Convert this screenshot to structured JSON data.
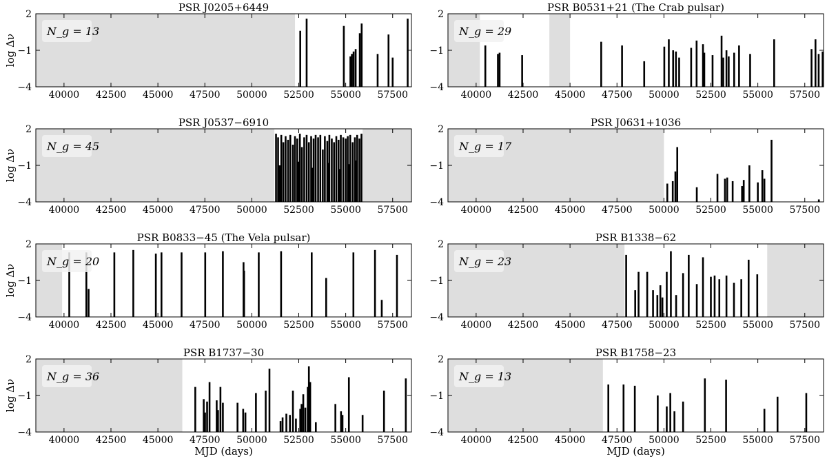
{
  "chart_data": [
    {
      "type": "bar",
      "title": "PSR J0205+6449",
      "badge": "N_g = 13",
      "ylabel": "log Δν",
      "xlabel": "",
      "xlim": [
        38500,
        58500
      ],
      "ylim": [
        -4,
        2
      ],
      "grey_regions": [
        [
          38500,
          52300
        ]
      ],
      "glitches": [
        {
          "x": 52580,
          "y": 0.6
        },
        {
          "x": 52920,
          "y": 1.6
        },
        {
          "x": 54900,
          "y": 1.0
        },
        {
          "x": 55250,
          "y": -1.5
        },
        {
          "x": 55330,
          "y": -1.3
        },
        {
          "x": 55420,
          "y": -1.1
        },
        {
          "x": 55530,
          "y": -0.9
        },
        {
          "x": 55750,
          "y": 0.4
        },
        {
          "x": 55850,
          "y": 1.2
        },
        {
          "x": 56700,
          "y": -1.3
        },
        {
          "x": 57280,
          "y": 0.3
        },
        {
          "x": 57500,
          "y": -1.6
        },
        {
          "x": 58300,
          "y": 1.6
        }
      ]
    },
    {
      "type": "bar",
      "title": "PSR B0531+21 (The Crab pulsar)",
      "badge": "N_g = 29",
      "ylabel": "",
      "xlabel": "",
      "xlim": [
        38500,
        58500
      ],
      "ylim": [
        -4,
        2
      ],
      "grey_regions": [
        [
          38500,
          40200
        ],
        [
          43900,
          45000
        ]
      ],
      "glitches": [
        {
          "x": 40490,
          "y": -0.6
        },
        {
          "x": 41160,
          "y": -1.3
        },
        {
          "x": 41250,
          "y": -1.2
        },
        {
          "x": 42450,
          "y": -1.4
        },
        {
          "x": 46660,
          "y": -0.3
        },
        {
          "x": 47770,
          "y": -0.6
        },
        {
          "x": 48950,
          "y": -1.9
        },
        {
          "x": 50020,
          "y": -0.7
        },
        {
          "x": 50260,
          "y": -0.1
        },
        {
          "x": 50490,
          "y": -1.0
        },
        {
          "x": 50810,
          "y": -1.6
        },
        {
          "x": 51450,
          "y": -0.8
        },
        {
          "x": 51740,
          "y": -0.2
        },
        {
          "x": 52080,
          "y": -0.5
        },
        {
          "x": 52150,
          "y": -1.2
        },
        {
          "x": 52590,
          "y": -1.4
        },
        {
          "x": 53070,
          "y": 0.2
        },
        {
          "x": 53330,
          "y": -1.0
        },
        {
          "x": 53740,
          "y": -1.2
        },
        {
          "x": 54000,
          "y": -0.6
        },
        {
          "x": 54590,
          "y": -1.3
        },
        {
          "x": 55870,
          "y": -0.1
        },
        {
          "x": 57860,
          "y": -0.9
        },
        {
          "x": 58070,
          "y": -0.1
        },
        {
          "x": 58240,
          "y": -1.3
        },
        {
          "x": 58450,
          "y": -1.1
        },
        {
          "x": 53450,
          "y": -1.5
        },
        {
          "x": 50640,
          "y": -1.1
        },
        {
          "x": 53160,
          "y": -1.6
        }
      ]
    },
    {
      "type": "bar",
      "title": "PSR J0537−6910",
      "badge": "N_g = 45",
      "ylabel": "log Δν",
      "xlabel": "",
      "xlim": [
        38500,
        58500
      ],
      "ylim": [
        -4,
        2
      ],
      "grey_regions": [
        [
          38500,
          51200
        ],
        [
          55900,
          58500
        ]
      ],
      "glitches": [
        {
          "x": 51290,
          "y": 1.6
        },
        {
          "x": 51400,
          "y": 1.3
        },
        {
          "x": 51570,
          "y": 1.5
        },
        {
          "x": 51680,
          "y": 0.9
        },
        {
          "x": 51800,
          "y": 1.4
        },
        {
          "x": 51930,
          "y": 1.1
        },
        {
          "x": 52050,
          "y": 1.5
        },
        {
          "x": 52190,
          "y": 0.7
        },
        {
          "x": 52300,
          "y": 1.4
        },
        {
          "x": 52420,
          "y": 1.2
        },
        {
          "x": 52560,
          "y": 1.6
        },
        {
          "x": 52670,
          "y": 0.5
        },
        {
          "x": 52790,
          "y": 1.3
        },
        {
          "x": 52920,
          "y": 1.5
        },
        {
          "x": 53040,
          "y": 0.9
        },
        {
          "x": 53160,
          "y": 1.4
        },
        {
          "x": 53290,
          "y": 1.2
        },
        {
          "x": 53400,
          "y": 1.5
        },
        {
          "x": 53530,
          "y": 1.3
        },
        {
          "x": 53650,
          "y": 1.5
        },
        {
          "x": 53780,
          "y": 0.3
        },
        {
          "x": 53890,
          "y": 1.4
        },
        {
          "x": 54020,
          "y": 1.0
        },
        {
          "x": 54130,
          "y": 1.5
        },
        {
          "x": 54260,
          "y": 1.2
        },
        {
          "x": 54380,
          "y": 0.9
        },
        {
          "x": 54500,
          "y": 1.4
        },
        {
          "x": 54620,
          "y": 1.1
        },
        {
          "x": 54740,
          "y": 1.5
        },
        {
          "x": 54870,
          "y": 1.3
        },
        {
          "x": 55000,
          "y": 1.2
        },
        {
          "x": 55110,
          "y": 1.4
        },
        {
          "x": 55240,
          "y": 1.5
        },
        {
          "x": 55370,
          "y": 0.9
        },
        {
          "x": 55490,
          "y": 1.3
        },
        {
          "x": 55610,
          "y": 1.5
        },
        {
          "x": 55730,
          "y": 1.2
        },
        {
          "x": 55840,
          "y": 1.6
        },
        {
          "x": 51480,
          "y": -1.0
        },
        {
          "x": 52480,
          "y": -0.7
        },
        {
          "x": 53210,
          "y": -1.2
        },
        {
          "x": 54070,
          "y": -0.8
        },
        {
          "x": 54680,
          "y": -1.3
        },
        {
          "x": 55180,
          "y": -0.9
        },
        {
          "x": 55560,
          "y": -0.6
        }
      ]
    },
    {
      "type": "bar",
      "title": "PSR J0631+1036",
      "badge": "N_g = 17",
      "ylabel": "",
      "xlabel": "",
      "xlim": [
        38500,
        58500
      ],
      "ylim": [
        -4,
        2
      ],
      "grey_regions": [
        [
          38500,
          50000
        ]
      ],
      "glitches": [
        {
          "x": 50180,
          "y": -2.5
        },
        {
          "x": 50470,
          "y": -2.3
        },
        {
          "x": 50610,
          "y": -1.5
        },
        {
          "x": 50710,
          "y": 0.5
        },
        {
          "x": 51750,
          "y": -2.8
        },
        {
          "x": 52850,
          "y": -1.7
        },
        {
          "x": 53250,
          "y": -2.1
        },
        {
          "x": 53370,
          "y": -2.0
        },
        {
          "x": 53660,
          "y": -2.3
        },
        {
          "x": 54160,
          "y": -2.7
        },
        {
          "x": 54250,
          "y": -2.2
        },
        {
          "x": 54550,
          "y": -1.0
        },
        {
          "x": 55000,
          "y": -2.4
        },
        {
          "x": 55240,
          "y": -1.4
        },
        {
          "x": 55350,
          "y": -2.1
        },
        {
          "x": 55730,
          "y": 1.1
        },
        {
          "x": 58250,
          "y": -3.8
        }
      ]
    },
    {
      "type": "bar",
      "title": "PSR B0833−45 (The Vela pulsar)",
      "badge": "N_g = 20",
      "ylabel": "log Δν",
      "xlabel": "",
      "xlim": [
        38500,
        58500
      ],
      "ylim": [
        -4,
        2
      ],
      "grey_regions": [
        [
          38500,
          39900
        ]
      ],
      "glitches": [
        {
          "x": 40280,
          "y": 1.3
        },
        {
          "x": 41190,
          "y": 1.3
        },
        {
          "x": 41310,
          "y": -1.7
        },
        {
          "x": 42680,
          "y": 1.3
        },
        {
          "x": 43690,
          "y": 1.5
        },
        {
          "x": 44890,
          "y": 1.2
        },
        {
          "x": 45190,
          "y": 1.3
        },
        {
          "x": 46260,
          "y": 1.3
        },
        {
          "x": 47520,
          "y": 1.3
        },
        {
          "x": 48460,
          "y": 1.4
        },
        {
          "x": 49560,
          "y": 0.5
        },
        {
          "x": 49590,
          "y": -0.2
        },
        {
          "x": 50370,
          "y": 1.3
        },
        {
          "x": 51560,
          "y": 1.4
        },
        {
          "x": 53190,
          "y": 1.3
        },
        {
          "x": 53960,
          "y": -0.8
        },
        {
          "x": 55410,
          "y": 1.3
        },
        {
          "x": 56560,
          "y": 1.5
        },
        {
          "x": 56920,
          "y": -2.6
        },
        {
          "x": 57730,
          "y": 1.1
        }
      ]
    },
    {
      "type": "bar",
      "title": "PSR B1338−62",
      "badge": "N_g = 23",
      "ylabel": "",
      "xlabel": "",
      "xlim": [
        38500,
        58500
      ],
      "ylim": [
        -4,
        2
      ],
      "grey_regions": [
        [
          38500,
          47900
        ],
        [
          55500,
          58500
        ]
      ],
      "glitches": [
        {
          "x": 47990,
          "y": 1.1
        },
        {
          "x": 48470,
          "y": -1.8
        },
        {
          "x": 48650,
          "y": -0.3
        },
        {
          "x": 49110,
          "y": -0.3
        },
        {
          "x": 49420,
          "y": -1.8
        },
        {
          "x": 49650,
          "y": -2.2
        },
        {
          "x": 49810,
          "y": -1.4
        },
        {
          "x": 49920,
          "y": -2.4
        },
        {
          "x": 50150,
          "y": -0.3
        },
        {
          "x": 50370,
          "y": 1.4
        },
        {
          "x": 50650,
          "y": -2.2
        },
        {
          "x": 51020,
          "y": -0.4
        },
        {
          "x": 51320,
          "y": 1.1
        },
        {
          "x": 51750,
          "y": -1.3
        },
        {
          "x": 52080,
          "y": 0.9
        },
        {
          "x": 52500,
          "y": -0.7
        },
        {
          "x": 52700,
          "y": -0.6
        },
        {
          "x": 52950,
          "y": -0.9
        },
        {
          "x": 53330,
          "y": -0.6
        },
        {
          "x": 53730,
          "y": -1.2
        },
        {
          "x": 54120,
          "y": -0.9
        },
        {
          "x": 54510,
          "y": 0.7
        },
        {
          "x": 54970,
          "y": -0.5
        }
      ]
    },
    {
      "type": "bar",
      "title": "PSR B1737−30",
      "badge": "N_g = 36",
      "ylabel": "log Δν",
      "xlabel": "MJD (days)",
      "xlim": [
        38500,
        58500
      ],
      "ylim": [
        -4,
        2
      ],
      "grey_regions": [
        [
          38500,
          46300
        ]
      ],
      "glitches": [
        {
          "x": 46990,
          "y": -0.3
        },
        {
          "x": 47440,
          "y": -1.3
        },
        {
          "x": 47510,
          "y": -2.4
        },
        {
          "x": 47620,
          "y": -1.5
        },
        {
          "x": 47750,
          "y": 0.1
        },
        {
          "x": 48130,
          "y": -1.4
        },
        {
          "x": 48200,
          "y": -2.2
        },
        {
          "x": 48330,
          "y": -0.3
        },
        {
          "x": 48460,
          "y": -1.6
        },
        {
          "x": 49240,
          "y": -1.6
        },
        {
          "x": 49540,
          "y": -2.1
        },
        {
          "x": 49660,
          "y": -2.4
        },
        {
          "x": 50220,
          "y": -0.8
        },
        {
          "x": 50740,
          "y": -0.6
        },
        {
          "x": 50940,
          "y": 1.2
        },
        {
          "x": 51530,
          "y": -3.1
        },
        {
          "x": 51640,
          "y": -2.8
        },
        {
          "x": 51840,
          "y": -2.5
        },
        {
          "x": 52030,
          "y": -2.6
        },
        {
          "x": 52190,
          "y": -0.6
        },
        {
          "x": 52350,
          "y": -2.9
        },
        {
          "x": 52580,
          "y": -2.1
        },
        {
          "x": 52650,
          "y": -1.7
        },
        {
          "x": 52740,
          "y": -0.9
        },
        {
          "x": 52850,
          "y": -2.0
        },
        {
          "x": 52980,
          "y": -0.3
        },
        {
          "x": 53040,
          "y": 1.4
        },
        {
          "x": 53110,
          "y": 0.1
        },
        {
          "x": 53410,
          "y": -3.2
        },
        {
          "x": 54450,
          "y": -1.7
        },
        {
          "x": 54750,
          "y": -2.3
        },
        {
          "x": 54830,
          "y": -2.6
        },
        {
          "x": 55170,
          "y": 0.5
        },
        {
          "x": 55900,
          "y": -2.6
        },
        {
          "x": 57040,
          "y": -0.6
        },
        {
          "x": 58200,
          "y": 0.4
        }
      ]
    },
    {
      "type": "bar",
      "title": "PSR B1758−23",
      "badge": "N_g = 13",
      "ylabel": "",
      "xlabel": "MJD (days)",
      "xlim": [
        38500,
        58500
      ],
      "ylim": [
        -4,
        2
      ],
      "grey_regions": [
        [
          38500,
          46750
        ]
      ],
      "glitches": [
        {
          "x": 47040,
          "y": -0.1
        },
        {
          "x": 47850,
          "y": -0.1
        },
        {
          "x": 48450,
          "y": -0.2
        },
        {
          "x": 49670,
          "y": -1.0
        },
        {
          "x": 50150,
          "y": -1.9
        },
        {
          "x": 50340,
          "y": -0.8
        },
        {
          "x": 50560,
          "y": -2.3
        },
        {
          "x": 51020,
          "y": -1.5
        },
        {
          "x": 52180,
          "y": 0.4
        },
        {
          "x": 53310,
          "y": 0.3
        },
        {
          "x": 55350,
          "y": -2.1
        },
        {
          "x": 56050,
          "y": -1.1
        },
        {
          "x": 57580,
          "y": -0.8
        }
      ]
    }
  ],
  "x_ticks": [
    "40000",
    "42500",
    "45000",
    "47500",
    "50000",
    "52500",
    "55000",
    "57500"
  ],
  "x_tick_values": [
    40000,
    42500,
    45000,
    47500,
    50000,
    52500,
    55000,
    57500
  ],
  "y_ticks": [
    "2",
    "−1",
    "−4"
  ],
  "y_tick_values": [
    2,
    -1,
    -4
  ],
  "colors": {
    "grey_region": "#dedede",
    "bar": "#000000",
    "badge_bg": "#f2f2f2"
  }
}
